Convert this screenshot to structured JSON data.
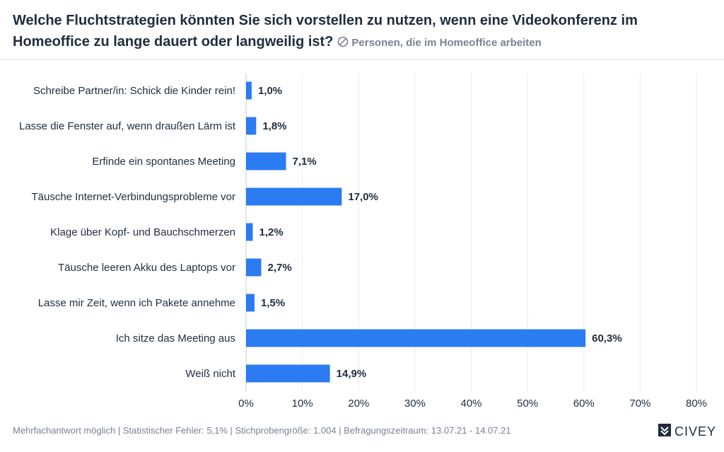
{
  "header": {
    "title": "Welche Fluchtstrategien könnten Sie sich vorstellen zu nutzen, wenn eine Videokonferenz im Homeoffice zu lange dauert oder langweilig ist?",
    "subtitle": "Personen, die im Homeoffice arbeiten",
    "subtitle_icon": "no-sign-icon"
  },
  "chart_data": {
    "type": "bar",
    "orientation": "horizontal",
    "categories": [
      "Schreibe Partner/in: Schick die Kinder rein!",
      "Lasse die Fenster auf, wenn draußen Lärm ist",
      "Erfinde ein spontanes Meeting",
      "Täusche Internet-Verbindungsprobleme vor",
      "Klage über Kopf- und Bauchschmerzen",
      "Täusche leeren Akku des Laptops vor",
      "Lasse mir Zeit, wenn ich Pakete annehme",
      "Ich sitze das Meeting aus",
      "Weiß nicht"
    ],
    "values": [
      1.0,
      1.8,
      7.1,
      17.0,
      1.2,
      2.7,
      1.5,
      60.3,
      14.9
    ],
    "value_labels": [
      "1,0%",
      "1,8%",
      "7,1%",
      "17,0%",
      "1,2%",
      "2,7%",
      "1,5%",
      "60,3%",
      "14,9%"
    ],
    "xlim": [
      0,
      80
    ],
    "x_ticks": [
      0,
      10,
      20,
      30,
      40,
      50,
      60,
      70,
      80
    ],
    "x_tick_labels": [
      "0%",
      "10%",
      "20%",
      "30%",
      "40%",
      "50%",
      "60%",
      "70%",
      "80%"
    ],
    "grid": true,
    "bar_color": "#2b7bf2"
  },
  "footer": {
    "note": "Mehrfachantwort möglich | Statistischer Fehler: 5,1% | Stichprobengröße: 1.004 | Befragungszeitraum: 13.07.21 - 14.07.21",
    "brand": "CIVEY",
    "brand_icon": "civey-logo-icon"
  }
}
